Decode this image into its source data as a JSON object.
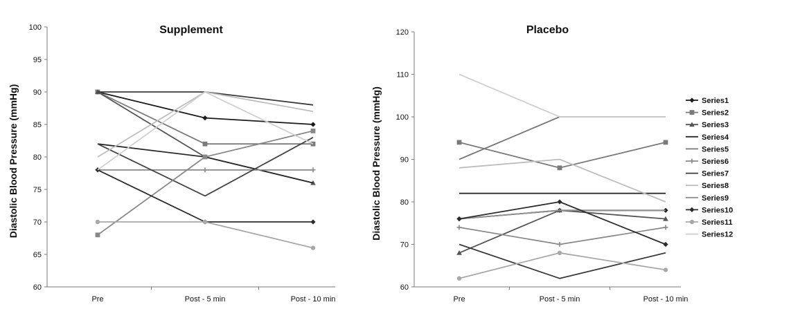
{
  "chart_data": [
    {
      "type": "line",
      "title": "Supplement",
      "xlabel": "",
      "ylabel": "Diastolic Blood Pressure (mmHg)",
      "categories": [
        "Pre",
        "Post - 5 min",
        "Post - 10 min"
      ],
      "ylim": [
        60,
        100
      ],
      "yticks": [
        60,
        65,
        70,
        75,
        80,
        85,
        90,
        95,
        100
      ],
      "grid": false,
      "series": [
        {
          "values": [
            90,
            86,
            85
          ],
          "color": "#1a1a1a",
          "marker": "diamond"
        },
        {
          "values": [
            90,
            82,
            82
          ],
          "color": "#7a7a7a",
          "marker": "square"
        },
        {
          "values": [
            90,
            80,
            76
          ],
          "color": "#555555",
          "marker": "triangle"
        },
        {
          "values": [
            90,
            90,
            88
          ],
          "color": "#3a3a3a",
          "marker": "none"
        },
        {
          "values": [
            82,
            80,
            76
          ],
          "color": "#2a2a2a",
          "marker": "none"
        },
        {
          "values": [
            78,
            78,
            78
          ],
          "color": "#8a8a8a",
          "marker": "cross"
        },
        {
          "values": [
            82,
            74,
            83
          ],
          "color": "#444444",
          "marker": "none"
        },
        {
          "values": [
            80,
            90,
            87
          ],
          "color": "#bdbdbd",
          "marker": "none"
        },
        {
          "values": [
            68,
            80,
            84
          ],
          "color": "#888888",
          "marker": "square"
        },
        {
          "values": [
            78,
            70,
            70
          ],
          "color": "#2b2b2b",
          "marker": "diamond"
        },
        {
          "values": [
            70,
            70,
            66
          ],
          "color": "#a8a8a8",
          "marker": "circle"
        },
        {
          "values": [
            78,
            90,
            82
          ],
          "color": "#cfcfcf",
          "marker": "none"
        }
      ]
    },
    {
      "type": "line",
      "title": "Placebo",
      "xlabel": "",
      "ylabel": "Diastolic Blood Pressure (mmHg)",
      "categories": [
        "Pre",
        "Post - 5 min",
        "Post - 10 min"
      ],
      "ylim": [
        60,
        120
      ],
      "yticks": [
        60,
        70,
        80,
        90,
        100,
        110,
        120
      ],
      "grid": false,
      "legend": {
        "position": "right",
        "entries": [
          "Series1",
          "Series2",
          "Series3",
          "Series4",
          "Series5",
          "Series6",
          "Series7",
          "Series8",
          "Series9",
          "Series10",
          "Series11",
          "Series12"
        ]
      },
      "series": [
        {
          "name": "Series1",
          "values": [
            76,
            78,
            78
          ],
          "color": "#1a1a1a",
          "marker": "diamond"
        },
        {
          "name": "Series2",
          "values": [
            94,
            88,
            94
          ],
          "color": "#7a7a7a",
          "marker": "square"
        },
        {
          "name": "Series3",
          "values": [
            68,
            78,
            76
          ],
          "color": "#555555",
          "marker": "triangle"
        },
        {
          "name": "Series4",
          "values": [
            82,
            82,
            82
          ],
          "color": "#2a2a2a",
          "marker": "none"
        },
        {
          "name": "Series5",
          "values": [
            90,
            100,
            100
          ],
          "color": "#777777",
          "marker": "none"
        },
        {
          "name": "Series6",
          "values": [
            74,
            70,
            74
          ],
          "color": "#8a8a8a",
          "marker": "cross"
        },
        {
          "name": "Series7",
          "values": [
            70,
            62,
            68
          ],
          "color": "#3a3a3a",
          "marker": "none"
        },
        {
          "name": "Series8",
          "values": [
            88,
            90,
            80
          ],
          "color": "#bdbdbd",
          "marker": "none"
        },
        {
          "name": "Series9",
          "values": [
            76,
            78,
            78
          ],
          "color": "#909090",
          "marker": "none"
        },
        {
          "name": "Series10",
          "values": [
            76,
            80,
            70
          ],
          "color": "#2b2b2b",
          "marker": "diamond"
        },
        {
          "name": "Series11",
          "values": [
            62,
            68,
            64
          ],
          "color": "#a8a8a8",
          "marker": "circle"
        },
        {
          "name": "Series12",
          "values": [
            110,
            100,
            100
          ],
          "color": "#cfcfcf",
          "marker": "none"
        }
      ]
    }
  ]
}
